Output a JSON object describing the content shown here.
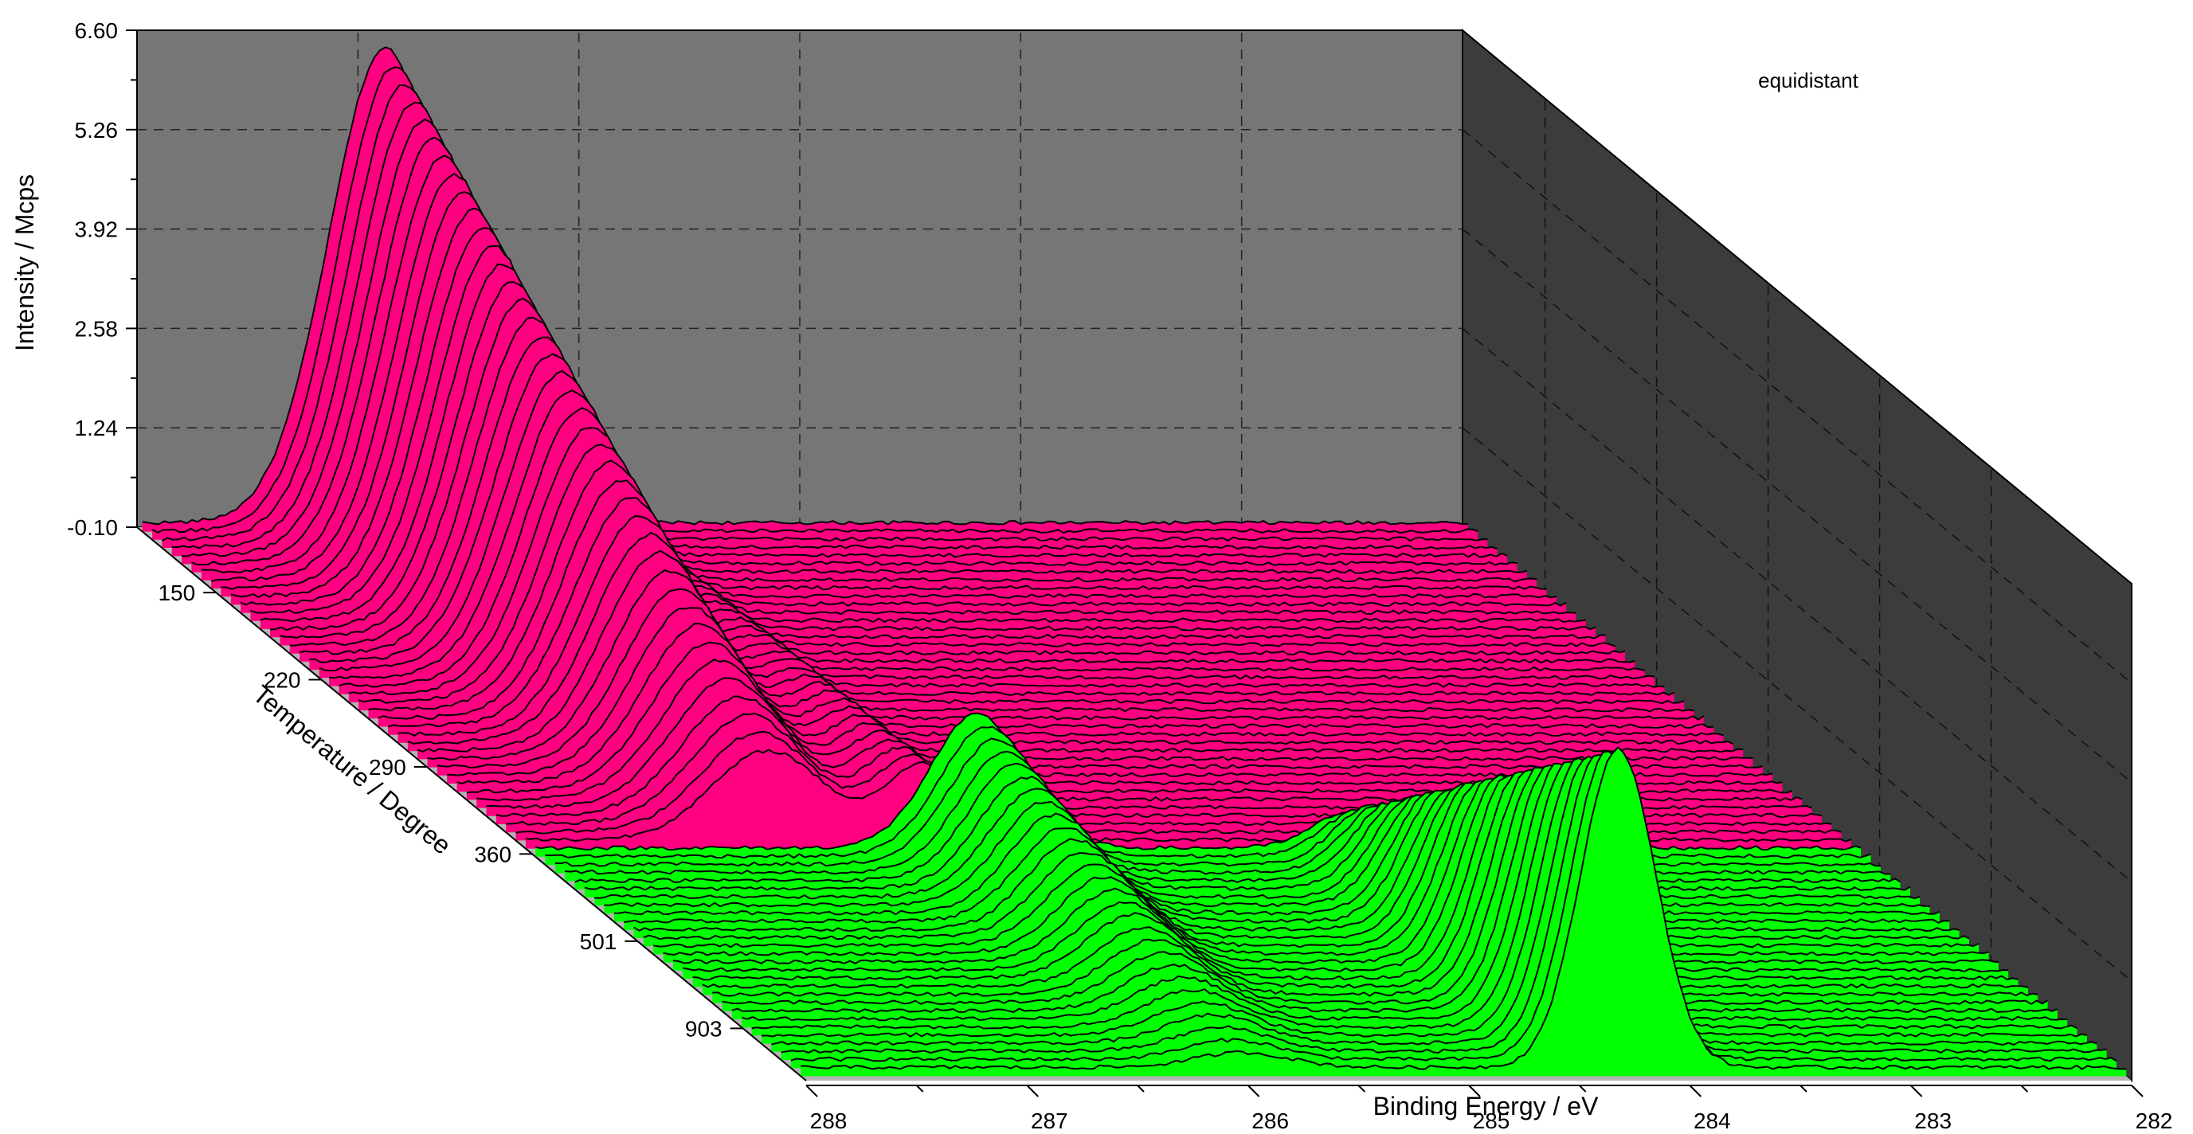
{
  "chart_data": {
    "type": "waterfall-3d",
    "annotation": "equidistant",
    "xlabel": "Binding Energy / eV",
    "ylabel": "Intensity / Mcps",
    "zlabel": "Temperature / Degree",
    "x_ticks": [
      "288",
      "287",
      "286",
      "285",
      "284",
      "283",
      "282"
    ],
    "y_ticks": [
      "-0.10",
      "1.24",
      "2.58",
      "3.92",
      "5.26",
      "6.60"
    ],
    "z_ticks": [
      "150",
      "220",
      "290",
      "360",
      "501",
      "903"
    ],
    "xlim": [
      288,
      282
    ],
    "ylim": [
      -0.1,
      6.6
    ],
    "colors": {
      "low_temperature": "#ff0080",
      "high_temperature": "#00ff00",
      "back_wall": "#767676",
      "side_wall": "#3c3c3c",
      "floor": "#b4b4b4",
      "outline": "#000000"
    },
    "series_groups": [
      {
        "temperature_range": [
          "150",
          "290"
        ],
        "color": "low_temperature",
        "traces": 40,
        "components": [
          {
            "center_eV": 286.9,
            "fwhm_eV": 0.6,
            "height_start": 6.4,
            "height_end": 1.2
          },
          {
            "center_eV": 286.2,
            "fwhm_eV": 0.4,
            "height_start": 0.8,
            "height_end": 1.0
          }
        ]
      },
      {
        "temperature_range": [
          "290",
          "903"
        ],
        "color": "high_temperature",
        "traces": 28,
        "components": [
          {
            "center_eV": 286.0,
            "fwhm_eV": 0.5,
            "height_start": 1.8,
            "height_end": 0.2
          },
          {
            "center_eV": 284.3,
            "fwhm_eV": 0.4,
            "height_start": 0.5,
            "height_end": 4.3
          }
        ]
      }
    ]
  }
}
